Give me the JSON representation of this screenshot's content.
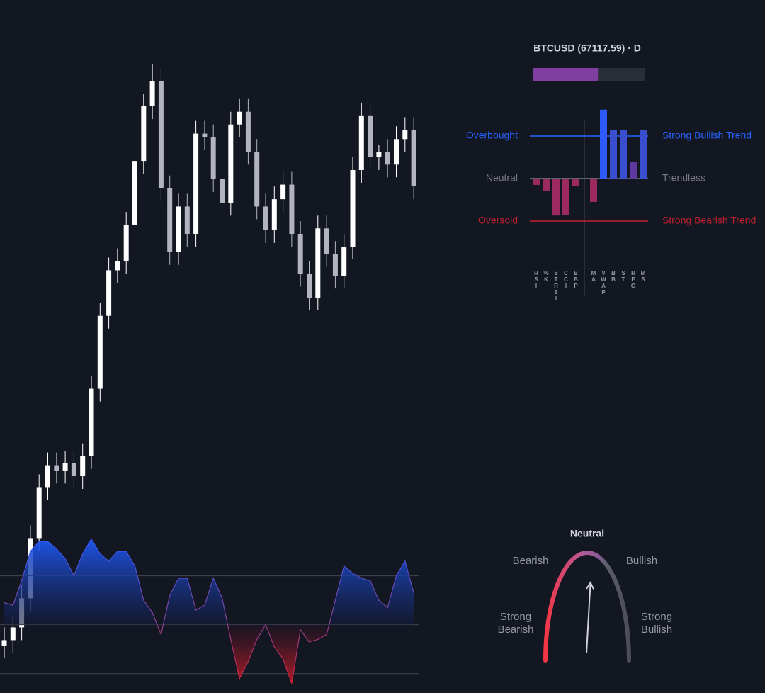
{
  "chart_data": [
    {
      "type": "candlestick",
      "open": [
        41900,
        42200,
        42900,
        44500,
        47800,
        50600,
        51800,
        51500,
        51900,
        51200,
        52300,
        56000,
        60000,
        62500,
        63000,
        65000,
        68500,
        71500,
        72900,
        67000,
        63500,
        66000,
        64500,
        70000,
        69800,
        67500,
        66200,
        70500,
        71200,
        69000,
        66000,
        64700,
        66400,
        67200,
        64500,
        62300,
        61000,
        64800,
        63400,
        62200,
        63800,
        68000,
        71000,
        68700,
        69000,
        68300,
        69700,
        70200
      ],
      "high": [
        42900,
        43600,
        45200,
        48500,
        51300,
        52500,
        52500,
        52600,
        52600,
        53000,
        56700,
        60700,
        63200,
        63700,
        65700,
        69200,
        72200,
        73800,
        73600,
        67700,
        66700,
        66700,
        70700,
        70700,
        70500,
        68200,
        71200,
        71900,
        71900,
        69700,
        66700,
        67100,
        67900,
        67900,
        65200,
        63000,
        65500,
        65500,
        64100,
        64500,
        68700,
        71700,
        71700,
        69400,
        69700,
        70400,
        70900,
        70900
      ],
      "low": [
        41200,
        41500,
        42200,
        43800,
        47100,
        49900,
        50800,
        50800,
        50500,
        50500,
        51600,
        55300,
        59300,
        61800,
        62300,
        64300,
        67800,
        70800,
        66300,
        62800,
        62800,
        63800,
        63800,
        69100,
        66800,
        65500,
        65500,
        69800,
        68300,
        65300,
        64000,
        64000,
        65700,
        63800,
        61600,
        60300,
        60300,
        62700,
        61500,
        61500,
        63100,
        67300,
        68000,
        68000,
        67600,
        67600,
        69000,
        66400
      ],
      "close": [
        42200,
        42900,
        44500,
        47800,
        50600,
        51800,
        51500,
        51900,
        51200,
        52300,
        56000,
        60000,
        62500,
        63000,
        65000,
        68500,
        71500,
        72900,
        67000,
        63500,
        66000,
        64500,
        70000,
        69800,
        67500,
        66200,
        70500,
        71200,
        69000,
        66000,
        64700,
        66400,
        67200,
        64500,
        62300,
        61000,
        64800,
        63400,
        62200,
        63800,
        68000,
        71000,
        68700,
        69000,
        68300,
        69700,
        70200,
        67117.59
      ],
      "ylim": [
        40000,
        75000
      ],
      "up_color": "#ffffff",
      "down_color": "#b2b5be"
    },
    {
      "type": "bar",
      "title": "BTCUSD (67117.59) · D",
      "strength": 58,
      "strength_lim": [
        0,
        100
      ],
      "strength_color": "#7e3fa0",
      "categories": [
        "RSI",
        "%K",
        "STRSI",
        "CCI",
        "BBP",
        "MA",
        "VWAP",
        "BB",
        "ST",
        "REG",
        "MS"
      ],
      "values": [
        -0.15,
        -0.3,
        -0.87,
        -0.85,
        -0.18,
        -0.55,
        1.62,
        1.15,
        1.15,
        0.4,
        1.15
      ],
      "colors": [
        "#9c2a5f",
        "#9c2a5f",
        "#9c2a5f",
        "#9c2a5f",
        "#9c2a5f",
        "#9c2a5f",
        "#2e5bff",
        "#3a4fd0",
        "#3a4fd0",
        "#5e3aa0",
        "#3a4fd0"
      ],
      "ylim": [
        -1.2,
        1.7
      ],
      "reference_lines": [
        {
          "value": 1,
          "left_label": "Overbought",
          "right_label": "Strong Bullish Trend",
          "color": "#2962ff"
        },
        {
          "value": 0,
          "left_label": "Neutral",
          "right_label": "Trendless",
          "color": "#787b86"
        },
        {
          "value": -1,
          "left_label": "Oversold",
          "right_label": "Strong Bearish Trend",
          "color": "#c2202e"
        }
      ]
    },
    {
      "type": "area",
      "values": [
        0.45,
        0.4,
        0.9,
        1.5,
        1.7,
        1.7,
        1.55,
        1.35,
        1.0,
        1.45,
        1.75,
        1.45,
        1.3,
        1.5,
        1.5,
        1.2,
        0.5,
        0.25,
        -0.2,
        0.6,
        0.95,
        0.95,
        0.3,
        0.4,
        0.95,
        0.55,
        -0.3,
        -1.1,
        -0.75,
        -0.3,
        0.0,
        -0.45,
        -0.7,
        -1.2,
        -0.1,
        -0.35,
        -0.3,
        -0.2,
        0.5,
        1.2,
        1.05,
        0.95,
        0.9,
        0.5,
        0.35,
        1.0,
        1.3,
        0.65
      ],
      "ylim": [
        -1.38,
        1.95
      ],
      "levels": [
        1,
        0,
        -1
      ]
    },
    {
      "type": "gauge",
      "title": "Neutral",
      "labels": [
        "Strong Bearish",
        "Bearish",
        "Bullish",
        "Strong Bullish"
      ],
      "value": 0.15,
      "lim": [
        -2,
        2
      ]
    }
  ]
}
